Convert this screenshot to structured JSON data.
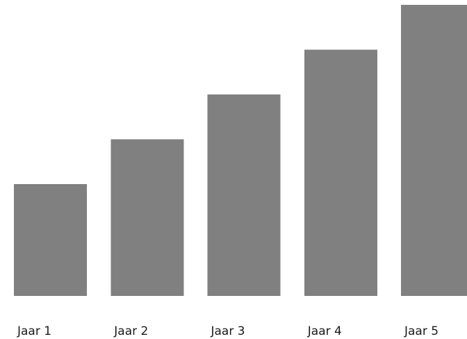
{
  "chart_data": {
    "type": "bar",
    "categories": [
      "Jaar 1",
      "Jaar 2",
      "Jaar 3",
      "Jaar 4",
      "Jaar 5"
    ],
    "values": [
      1,
      1.4,
      1.8,
      2.2,
      2.6
    ],
    "title": "",
    "xlabel": "",
    "ylabel": "",
    "ylim": [
      0,
      2.6
    ],
    "grid": false,
    "bar_color": "#808080"
  }
}
